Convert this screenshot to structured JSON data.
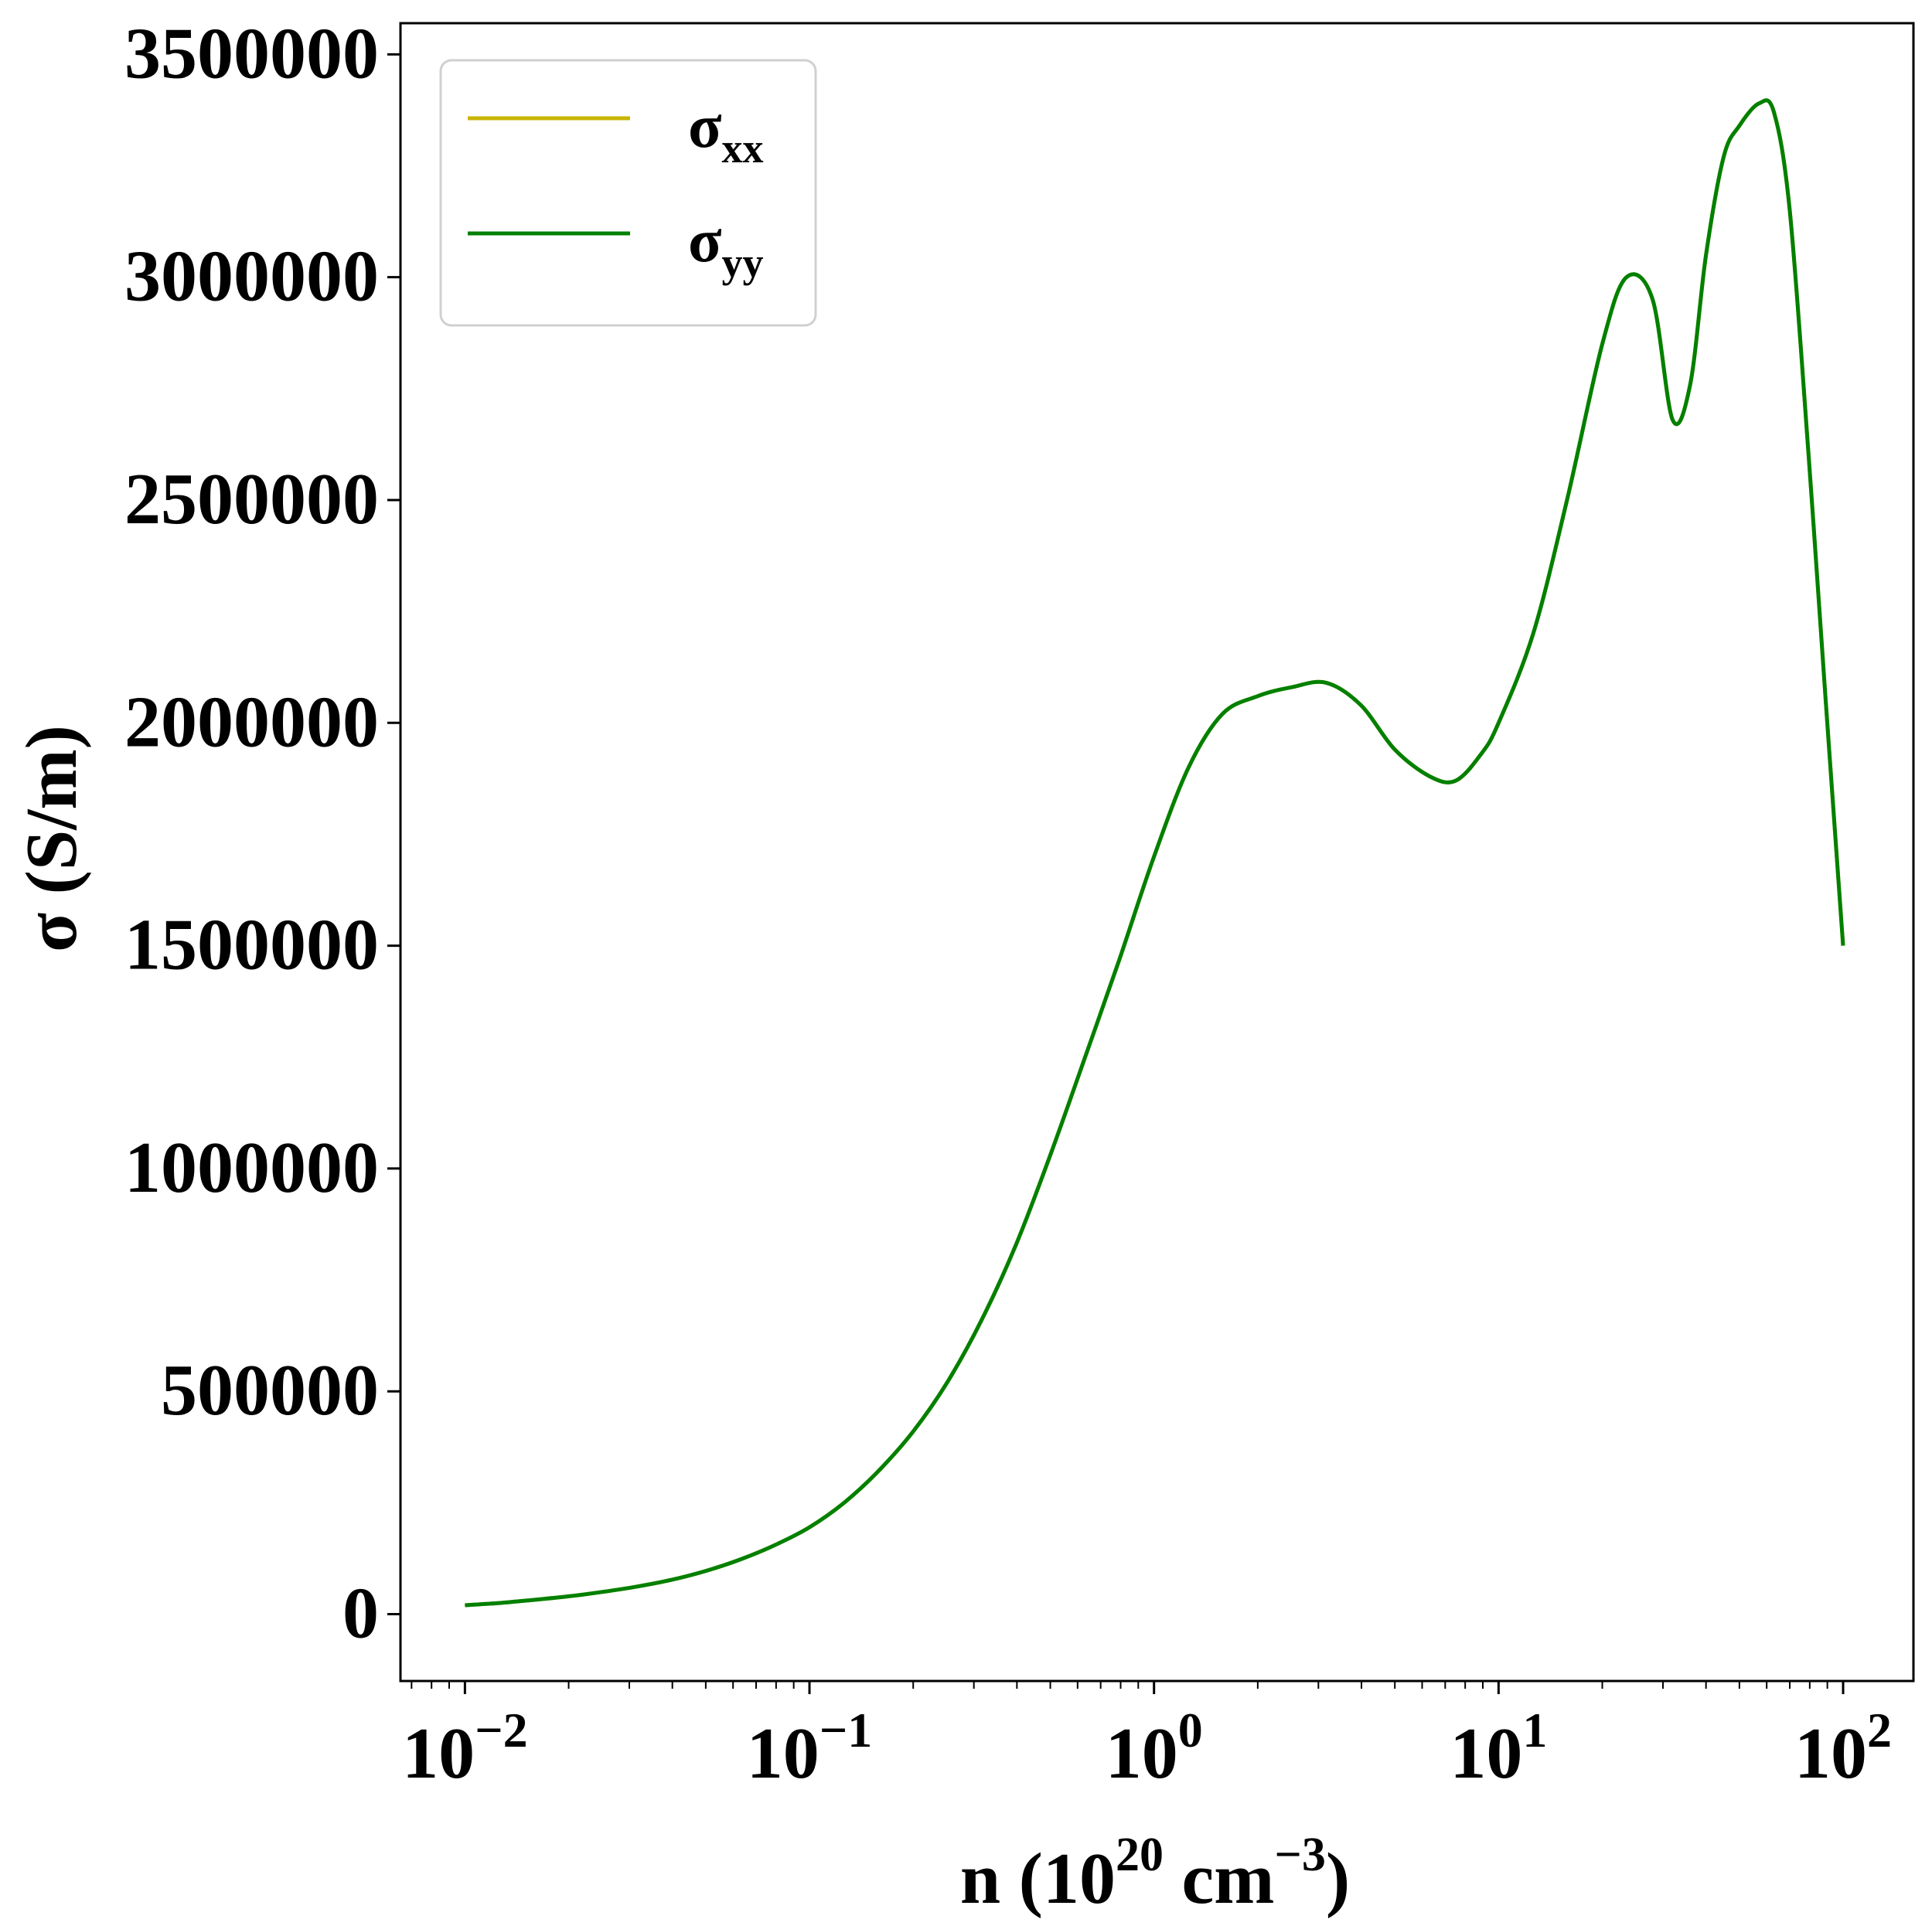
{
  "chart_data": {
    "type": "line",
    "xlabel": "n (10^20 cm^-3)",
    "xlabel_parts": {
      "n": "n (10",
      "exp1": "20",
      "mid": " cm",
      "exp2": "−3",
      "close": ")"
    },
    "ylabel": "σ (S/m)",
    "x_scale": "log",
    "xlim": [
      0.0065,
      160
    ],
    "ylim": [
      -150000,
      3570000
    ],
    "x_ticks": [
      {
        "value": 0.01,
        "base": "10",
        "exp": "−2"
      },
      {
        "value": 0.1,
        "base": "10",
        "exp": "−1"
      },
      {
        "value": 1,
        "base": "10",
        "exp": "0"
      },
      {
        "value": 10,
        "base": "10",
        "exp": "1"
      },
      {
        "value": 100,
        "base": "10",
        "exp": "2"
      }
    ],
    "y_ticks": [
      {
        "value": 0,
        "label": "0"
      },
      {
        "value": 500000,
        "label": "500000"
      },
      {
        "value": 1000000,
        "label": "1000000"
      },
      {
        "value": 1500000,
        "label": "1500000"
      },
      {
        "value": 2000000,
        "label": "2000000"
      },
      {
        "value": 2500000,
        "label": "2500000"
      },
      {
        "value": 3000000,
        "label": "3000000"
      },
      {
        "value": 3500000,
        "label": "3500000"
      }
    ],
    "grid": false,
    "legend_position": "top-left",
    "series": [
      {
        "name": "σ",
        "subscript": "xx",
        "color": "#c8b400",
        "x": [
          0.01,
          0.0126,
          0.0158,
          0.02,
          0.0251,
          0.0316,
          0.0398,
          0.05,
          0.0631,
          0.0794,
          0.1,
          0.126,
          0.158,
          0.2,
          0.251,
          0.316,
          0.398,
          0.5,
          0.631,
          0.794,
          1.0,
          1.26,
          1.58,
          2.0,
          2.51,
          3.16,
          3.98,
          5.0,
          6.31,
          7.5,
          8.9,
          10.0,
          12.6,
          15.8,
          20.0,
          23.5,
          28.0,
          32.0,
          36.0,
          40.0,
          45.0,
          50.0,
          57.0,
          63.0,
          70.0,
          79.4,
          89.0,
          100.0
        ],
        "y": [
          20000,
          25000,
          32000,
          40000,
          50000,
          62000,
          77000,
          97000,
          123000,
          155000,
          195000,
          250000,
          320000,
          410000,
          520000,
          660000,
          830000,
          1030000,
          1250000,
          1470000,
          1700000,
          1900000,
          2020000,
          2060000,
          2080000,
          2090000,
          2040000,
          1940000,
          1880000,
          1870000,
          1930000,
          2000000,
          2200000,
          2500000,
          2850000,
          3000000,
          2950000,
          2680000,
          2760000,
          3050000,
          3270000,
          3340000,
          3390000,
          3370000,
          3150000,
          2600000,
          2050000,
          1500000
        ]
      },
      {
        "name": "σ",
        "subscript": "yy",
        "color": "#008000",
        "x": [
          0.01,
          0.0126,
          0.0158,
          0.02,
          0.0251,
          0.0316,
          0.0398,
          0.05,
          0.0631,
          0.0794,
          0.1,
          0.126,
          0.158,
          0.2,
          0.251,
          0.316,
          0.398,
          0.5,
          0.631,
          0.794,
          1.0,
          1.26,
          1.58,
          2.0,
          2.51,
          3.16,
          3.98,
          5.0,
          6.31,
          7.5,
          8.9,
          10.0,
          12.6,
          15.8,
          20.0,
          23.5,
          28.0,
          32.0,
          36.0,
          40.0,
          45.0,
          50.0,
          57.0,
          63.0,
          70.0,
          79.4,
          89.0,
          100.0
        ],
        "y": [
          20000,
          25000,
          32000,
          40000,
          50000,
          62000,
          77000,
          97000,
          123000,
          155000,
          195000,
          250000,
          320000,
          410000,
          520000,
          660000,
          830000,
          1030000,
          1250000,
          1470000,
          1700000,
          1900000,
          2020000,
          2060000,
          2080000,
          2090000,
          2040000,
          1940000,
          1880000,
          1870000,
          1930000,
          2000000,
          2200000,
          2500000,
          2850000,
          3000000,
          2950000,
          2680000,
          2760000,
          3050000,
          3270000,
          3340000,
          3390000,
          3370000,
          3150000,
          2600000,
          2050000,
          1500000
        ]
      }
    ]
  }
}
